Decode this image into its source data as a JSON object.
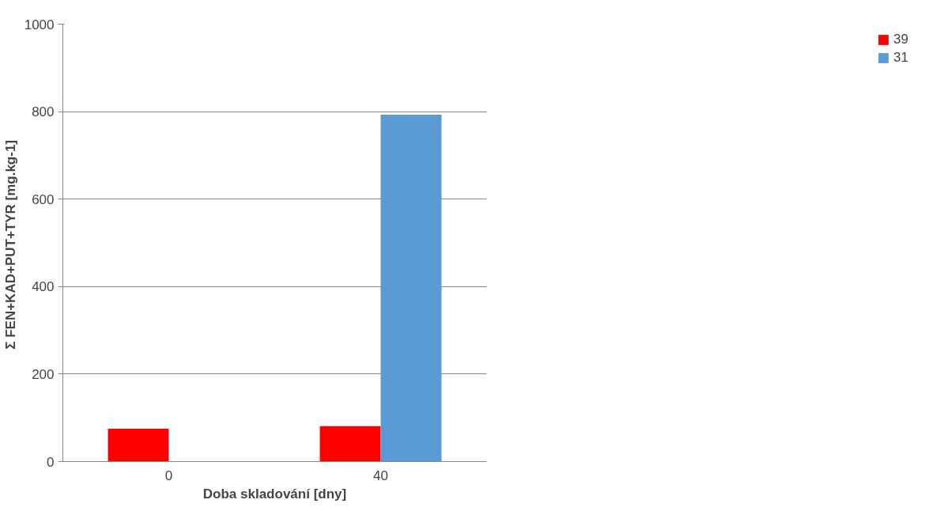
{
  "chart_data": {
    "type": "bar",
    "categories": [
      "0",
      "40"
    ],
    "series": [
      {
        "name": "39",
        "color": "#ff0000",
        "values": [
          75,
          81
        ]
      },
      {
        "name": "31",
        "color": "#5b9bd5",
        "values": [
          null,
          793
        ]
      }
    ],
    "xlabel": "Doba skladování [dny]",
    "ylabel": "Σ FEN+KAD+PUT+TYR  [mg.kg-1]",
    "ylim": [
      0,
      1000
    ],
    "yticks": [
      0,
      200,
      400,
      600,
      800,
      1000
    ],
    "grid": "y",
    "legend": "right"
  }
}
